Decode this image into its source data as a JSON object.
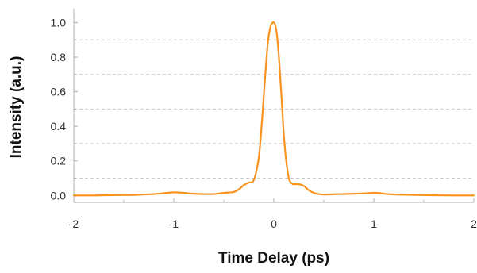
{
  "chart_data": {
    "type": "line",
    "title": "",
    "xlabel": "Time Delay (ps)",
    "ylabel": "Intensity (a.u.)",
    "xlim": [
      -2,
      2
    ],
    "ylim": [
      -0.04,
      1.08
    ],
    "x_ticks": [
      -2,
      -1,
      0,
      1,
      2
    ],
    "x_tick_labels": [
      "-2",
      "-1",
      "0",
      "1",
      "2"
    ],
    "y_ticks": [
      0.0,
      0.2,
      0.4,
      0.6,
      0.8,
      1.0
    ],
    "y_tick_labels": [
      "0.0",
      "0.2",
      "0.4",
      "0.6",
      "0.8",
      "1.0"
    ],
    "grid": {
      "horizontal_dashed": true,
      "at": [
        0.1,
        0.3,
        0.5,
        0.7,
        0.9
      ]
    },
    "colors": {
      "line": "#F7931E",
      "grid": "#c8c8c8",
      "axis": "#b0b0b0"
    },
    "series": [
      {
        "x": [
          -2.0,
          -1.8,
          -1.6,
          -1.4,
          -1.2,
          -1.1,
          -1.0,
          -0.9,
          -0.8,
          -0.7,
          -0.6,
          -0.5,
          -0.45,
          -0.4,
          -0.35,
          -0.3,
          -0.25,
          -0.2,
          -0.15,
          -0.12,
          -0.1,
          -0.08,
          -0.06,
          -0.04,
          -0.02,
          0.0,
          0.02,
          0.04,
          0.06,
          0.08,
          0.1,
          0.12,
          0.15,
          0.18,
          0.2,
          0.25,
          0.3,
          0.35,
          0.4,
          0.45,
          0.5,
          0.6,
          0.7,
          0.8,
          0.9,
          1.0,
          1.05,
          1.1,
          1.2,
          1.4,
          1.6,
          1.8,
          2.0
        ],
        "y": [
          0.0,
          0.0,
          0.002,
          0.003,
          0.008,
          0.013,
          0.018,
          0.015,
          0.01,
          0.008,
          0.008,
          0.015,
          0.017,
          0.02,
          0.035,
          0.06,
          0.075,
          0.09,
          0.22,
          0.42,
          0.58,
          0.74,
          0.88,
          0.96,
          0.995,
          1.0,
          0.97,
          0.88,
          0.72,
          0.54,
          0.35,
          0.22,
          0.1,
          0.07,
          0.065,
          0.065,
          0.055,
          0.03,
          0.015,
          0.008,
          0.005,
          0.007,
          0.008,
          0.01,
          0.012,
          0.015,
          0.014,
          0.01,
          0.006,
          0.003,
          0.001,
          0.0,
          0.0
        ]
      }
    ]
  }
}
